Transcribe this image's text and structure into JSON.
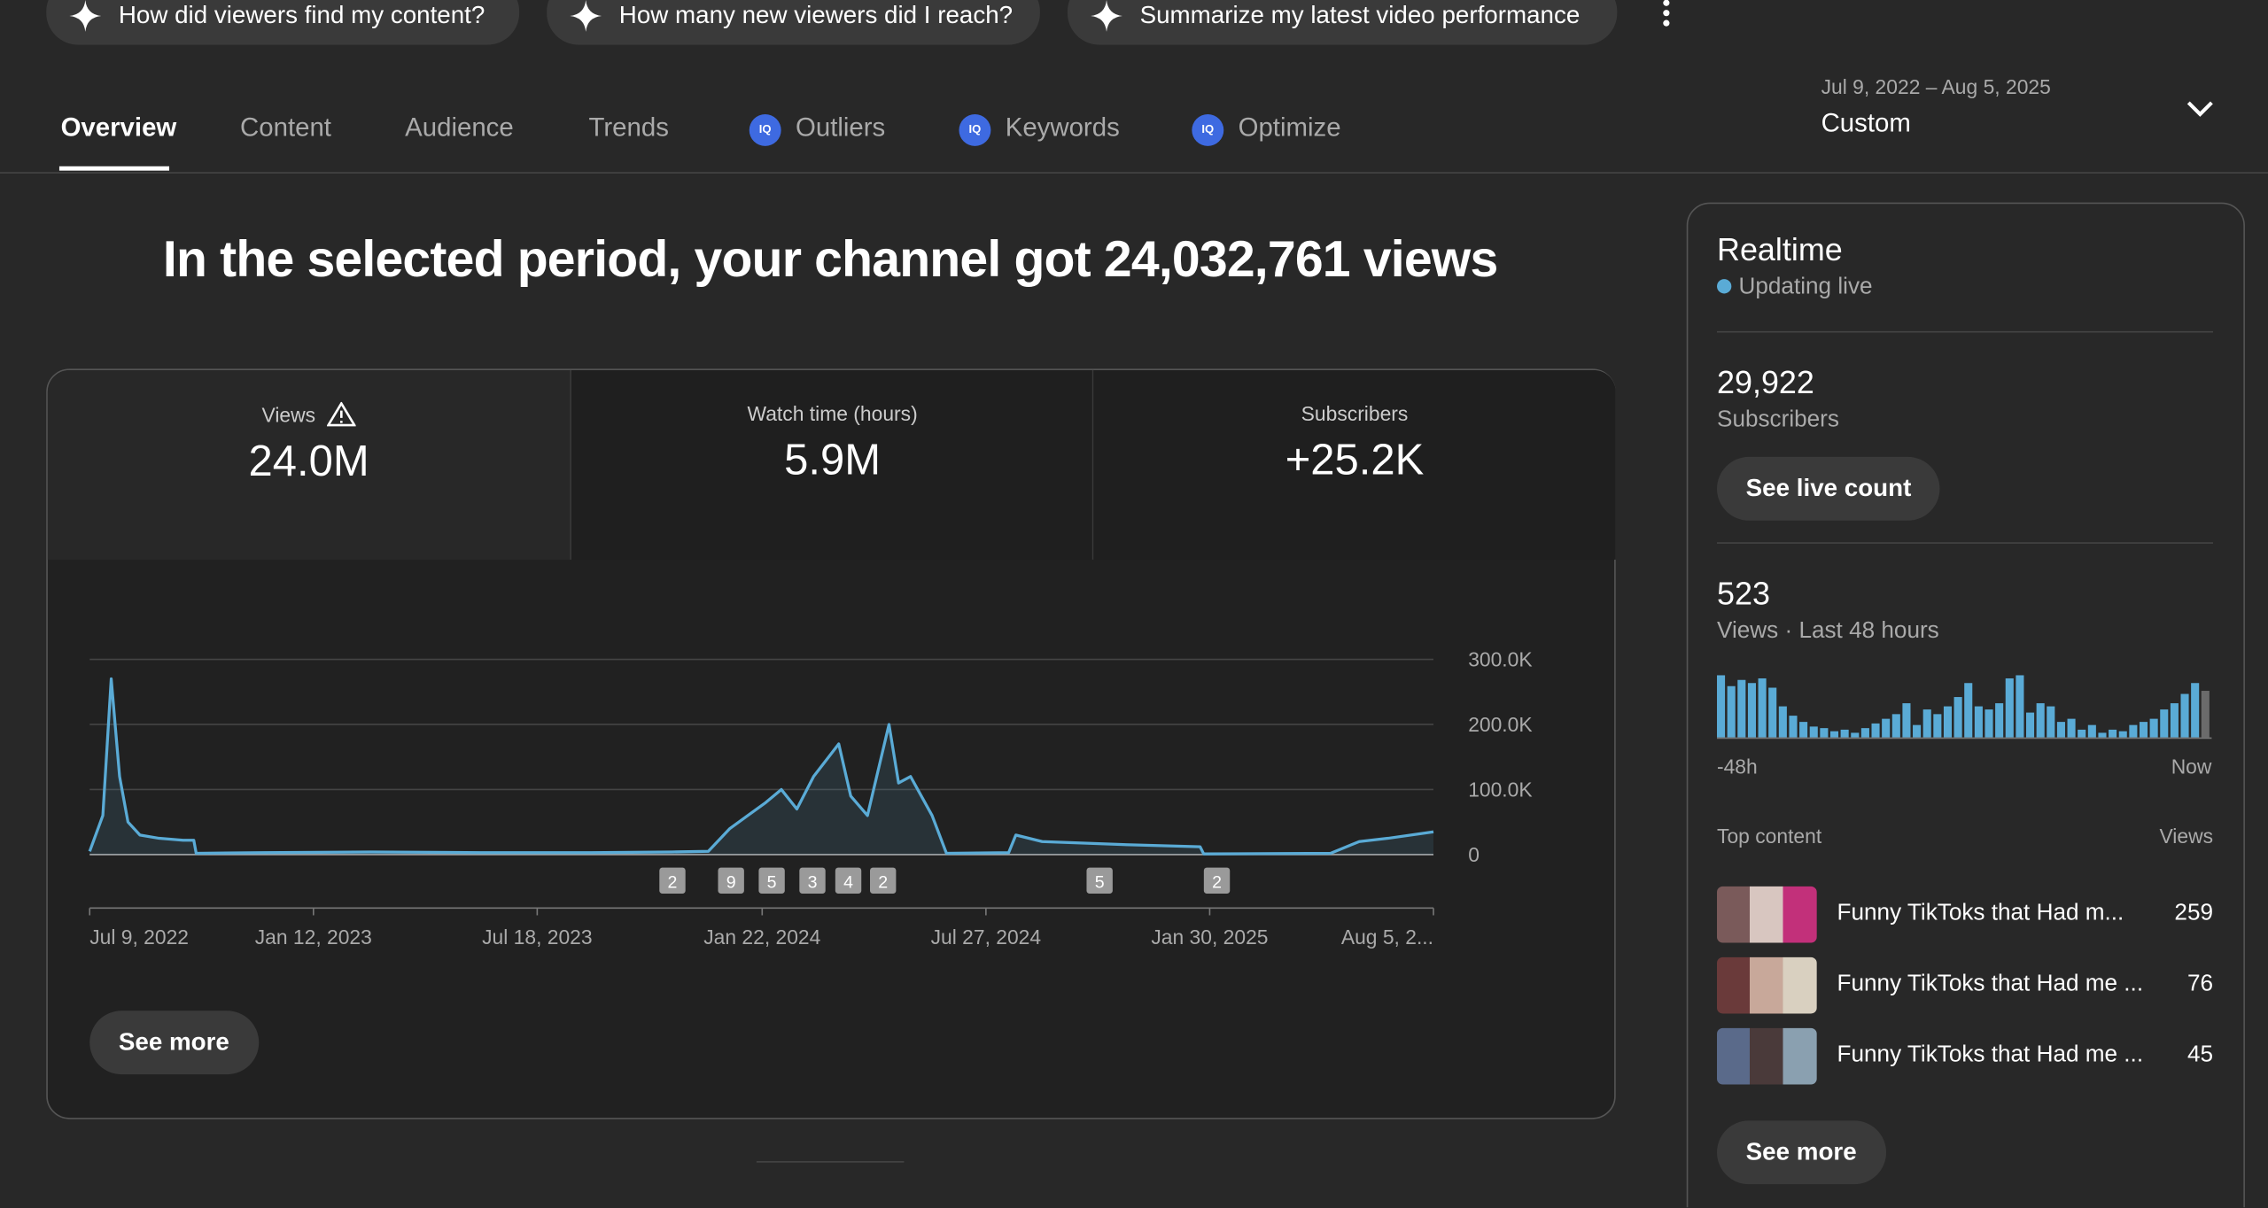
{
  "chips": [
    "How did viewers find my content?",
    "How many new viewers did I reach?",
    "Summarize my latest video performance"
  ],
  "tabs": [
    "Overview",
    "Content",
    "Audience",
    "Trends",
    "Outliers",
    "Keywords",
    "Optimize"
  ],
  "date_range": {
    "range": "Jul 9, 2022 – Aug 5, 2025",
    "label": "Custom"
  },
  "headline": "In the selected period, your channel got 24,032,761 views",
  "metrics": [
    {
      "label": "Views",
      "value": "24.0M"
    },
    {
      "label": "Watch time (hours)",
      "value": "5.9M"
    },
    {
      "label": "Subscribers",
      "value": "+25.2K"
    }
  ],
  "see_more": "See more",
  "chart_data": [
    {
      "type": "line",
      "color": "#5aabd6",
      "grid": true,
      "x": [
        "2022-07-09",
        "2022-07-20",
        "2022-07-27",
        "2022-08-03",
        "2022-08-10",
        "2022-08-20",
        "2022-09-05",
        "2022-09-25",
        "2022-10-04",
        "2022-10-06",
        "2022-12-01",
        "2023-03-01",
        "2023-06-01",
        "2023-09-01",
        "2023-11-08",
        "2023-12-08",
        "2023-12-26",
        "2024-01-10",
        "2024-01-25",
        "2024-02-07",
        "2024-02-20",
        "2024-03-05",
        "2024-03-26",
        "2024-04-05",
        "2024-04-19",
        "2024-05-07",
        "2024-05-15",
        "2024-05-25",
        "2024-06-12",
        "2024-06-24",
        "2024-08-15",
        "2024-08-21",
        "2024-09-12",
        "2024-11-24",
        "2025-01-22",
        "2025-01-25",
        "2025-05-11",
        "2025-06-04",
        "2025-06-28",
        "2025-08-05"
      ],
      "values": [
        5000,
        60000,
        270000,
        120000,
        50000,
        30000,
        25000,
        22000,
        22000,
        2000,
        3000,
        4000,
        3000,
        3000,
        4000,
        5000,
        40000,
        60000,
        80000,
        100000,
        70000,
        120000,
        170000,
        90000,
        60000,
        200000,
        110000,
        120000,
        60000,
        2000,
        3000,
        30000,
        20000,
        15000,
        12000,
        1000,
        2000,
        20000,
        25000,
        35000
      ],
      "xlim": [
        "2022-07-09",
        "2025-08-05"
      ],
      "xticks": [
        {
          "value": "2022-07-09",
          "label": "Jul 9, 2022"
        },
        {
          "value": "2023-01-12",
          "label": "Jan 12, 2023"
        },
        {
          "value": "2023-07-18",
          "label": "Jul 18, 2023"
        },
        {
          "value": "2024-01-22",
          "label": "Jan 22, 2024"
        },
        {
          "value": "2024-07-27",
          "label": "Jul 27, 2024"
        },
        {
          "value": "2025-01-30",
          "label": "Jan 30, 2025"
        },
        {
          "value": "2025-08-05",
          "label": "Aug 5, 2..."
        }
      ],
      "ylim": [
        0,
        300000
      ],
      "yticks": [
        0,
        {
          "value": 100000,
          "label": "100.0K"
        },
        {
          "value": 200000,
          "label": "200.0K"
        },
        {
          "value": 300000,
          "label": "300.0K"
        }
      ],
      "annotations": [
        {
          "x": "2023-11-08",
          "label": "2"
        },
        {
          "x": "2023-12-27",
          "label": "9"
        },
        {
          "x": "2024-01-30",
          "label": "5"
        },
        {
          "x": "2024-03-04",
          "label": "3"
        },
        {
          "x": "2024-04-03",
          "label": "4"
        },
        {
          "x": "2024-05-02",
          "label": "2"
        },
        {
          "x": "2024-10-30",
          "label": "5"
        },
        {
          "x": "2025-02-05",
          "label": "2"
        }
      ]
    },
    {
      "type": "bar",
      "color": "#5aabd6",
      "last_color": "#6b6b6b",
      "values": [
        40,
        33,
        37,
        35,
        38,
        32,
        20,
        14,
        10,
        7,
        6,
        4,
        5,
        3,
        6,
        9,
        12,
        15,
        22,
        8,
        18,
        15,
        20,
        26,
        35,
        20,
        18,
        22,
        38,
        40,
        16,
        22,
        20,
        10,
        12,
        5,
        8,
        3,
        5,
        4,
        8,
        10,
        12,
        18,
        22,
        28,
        35,
        30
      ],
      "x_labels": [
        "-48h",
        "Now"
      ]
    }
  ],
  "realtime": {
    "title": "Realtime",
    "status": "Updating live",
    "subscribers": "29,922",
    "subscribers_label": "Subscribers",
    "live_button": "See live count",
    "views": "523",
    "views_label": "Views · Last 48 hours",
    "top_content": "Top content",
    "views_col": "Views",
    "videos": [
      {
        "title": "Funny TikToks that Had m...",
        "views": "259"
      },
      {
        "title": "Funny TikToks that Had me ...",
        "views": "76"
      },
      {
        "title": "Funny TikToks that Had me ...",
        "views": "45"
      }
    ],
    "see_more": "See more"
  }
}
